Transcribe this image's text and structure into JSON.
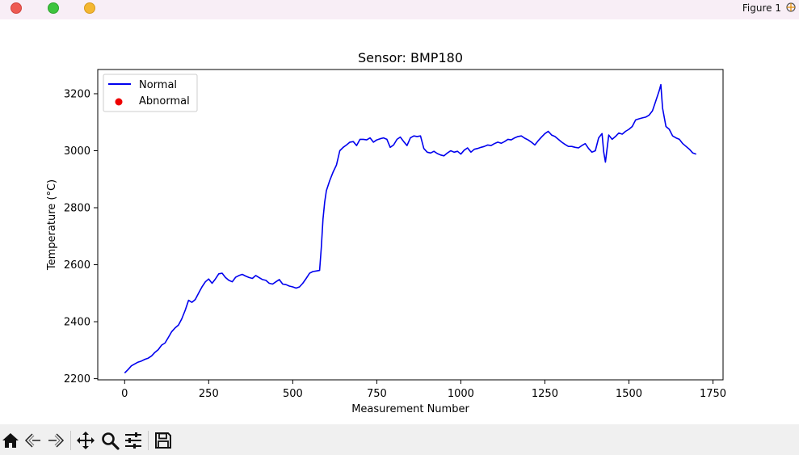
{
  "window": {
    "title": "Figure 1"
  },
  "toolbar": {
    "buttons": [
      {
        "name": "home-icon"
      },
      {
        "name": "back-arrow-icon"
      },
      {
        "name": "forward-arrow-icon"
      },
      {
        "name": "pan-icon"
      },
      {
        "name": "zoom-icon"
      },
      {
        "name": "configure-subplots-icon"
      },
      {
        "name": "save-icon"
      }
    ]
  },
  "chart_data": {
    "type": "line",
    "title": "Sensor: BMP180",
    "xlabel": "Measurement Number",
    "ylabel": "Temperature (°C)",
    "xlim": [
      -80,
      1780
    ],
    "ylim": [
      2196,
      3285
    ],
    "xticks": [
      0,
      250,
      500,
      750,
      1000,
      1250,
      1500,
      1750
    ],
    "yticks": [
      2200,
      2400,
      2600,
      2800,
      3000,
      3200
    ],
    "grid": false,
    "legend": {
      "position": "upper-left",
      "entries": [
        {
          "label": "Normal",
          "marker": "line",
          "color": "#0000ee"
        },
        {
          "label": "Abnormal",
          "marker": "point",
          "color": "#ee0000"
        }
      ]
    },
    "series": [
      {
        "name": "Normal",
        "color": "#0000ee",
        "x": [
          0,
          10,
          20,
          30,
          40,
          50,
          60,
          70,
          80,
          90,
          100,
          110,
          120,
          130,
          140,
          150,
          160,
          170,
          180,
          190,
          200,
          210,
          220,
          230,
          240,
          250,
          260,
          270,
          280,
          290,
          300,
          310,
          320,
          330,
          340,
          350,
          360,
          370,
          380,
          390,
          400,
          410,
          420,
          430,
          440,
          450,
          460,
          470,
          480,
          490,
          500,
          510,
          520,
          530,
          540,
          550,
          560,
          570,
          580,
          585,
          590,
          595,
          600,
          610,
          620,
          630,
          640,
          650,
          660,
          670,
          680,
          690,
          700,
          710,
          720,
          730,
          740,
          750,
          760,
          770,
          780,
          790,
          800,
          810,
          820,
          830,
          840,
          850,
          860,
          870,
          880,
          890,
          900,
          910,
          920,
          930,
          940,
          950,
          960,
          970,
          980,
          990,
          1000,
          1010,
          1020,
          1030,
          1040,
          1050,
          1060,
          1070,
          1080,
          1090,
          1100,
          1110,
          1120,
          1130,
          1140,
          1150,
          1160,
          1170,
          1180,
          1190,
          1200,
          1210,
          1220,
          1230,
          1240,
          1250,
          1260,
          1270,
          1280,
          1290,
          1300,
          1310,
          1320,
          1330,
          1340,
          1350,
          1360,
          1370,
          1380,
          1390,
          1400,
          1410,
          1420,
          1425,
          1430,
          1440,
          1450,
          1460,
          1470,
          1480,
          1490,
          1500,
          1510,
          1520,
          1530,
          1540,
          1550,
          1560,
          1570,
          1580,
          1590,
          1595,
          1600,
          1610,
          1620,
          1630,
          1640,
          1650,
          1660,
          1670,
          1680,
          1690,
          1700
        ],
        "values": [
          2220,
          2232,
          2245,
          2252,
          2258,
          2262,
          2268,
          2272,
          2280,
          2292,
          2302,
          2318,
          2325,
          2345,
          2365,
          2378,
          2388,
          2410,
          2440,
          2475,
          2468,
          2478,
          2500,
          2522,
          2540,
          2550,
          2535,
          2550,
          2568,
          2570,
          2555,
          2545,
          2540,
          2556,
          2562,
          2566,
          2560,
          2555,
          2552,
          2562,
          2555,
          2548,
          2545,
          2535,
          2532,
          2540,
          2548,
          2532,
          2530,
          2525,
          2522,
          2518,
          2522,
          2535,
          2552,
          2570,
          2576,
          2578,
          2580,
          2660,
          2760,
          2820,
          2860,
          2895,
          2925,
          2950,
          3000,
          3012,
          3020,
          3030,
          3032,
          3018,
          3040,
          3040,
          3038,
          3045,
          3030,
          3038,
          3042,
          3045,
          3040,
          3012,
          3020,
          3040,
          3048,
          3032,
          3018,
          3045,
          3052,
          3050,
          3052,
          3008,
          2995,
          2992,
          2998,
          2990,
          2985,
          2982,
          2992,
          3000,
          2995,
          2998,
          2988,
          3002,
          3010,
          2995,
          3005,
          3008,
          3012,
          3015,
          3020,
          3018,
          3025,
          3030,
          3026,
          3032,
          3040,
          3038,
          3045,
          3050,
          3052,
          3044,
          3038,
          3030,
          3020,
          3035,
          3048,
          3060,
          3068,
          3055,
          3050,
          3040,
          3030,
          3022,
          3015,
          3015,
          3012,
          3010,
          3018,
          3025,
          3008,
          2995,
          3000,
          3045,
          3060,
          2995,
          2960,
          3055,
          3040,
          3050,
          3062,
          3058,
          3068,
          3075,
          3085,
          3108,
          3112,
          3115,
          3118,
          3125,
          3140,
          3175,
          3210,
          3232,
          3150,
          3085,
          3075,
          3052,
          3045,
          3040,
          3025,
          3015,
          3005,
          2992,
          2988
        ]
      },
      {
        "name": "Abnormal",
        "color": "#ee0000",
        "x": [],
        "values": []
      }
    ]
  }
}
